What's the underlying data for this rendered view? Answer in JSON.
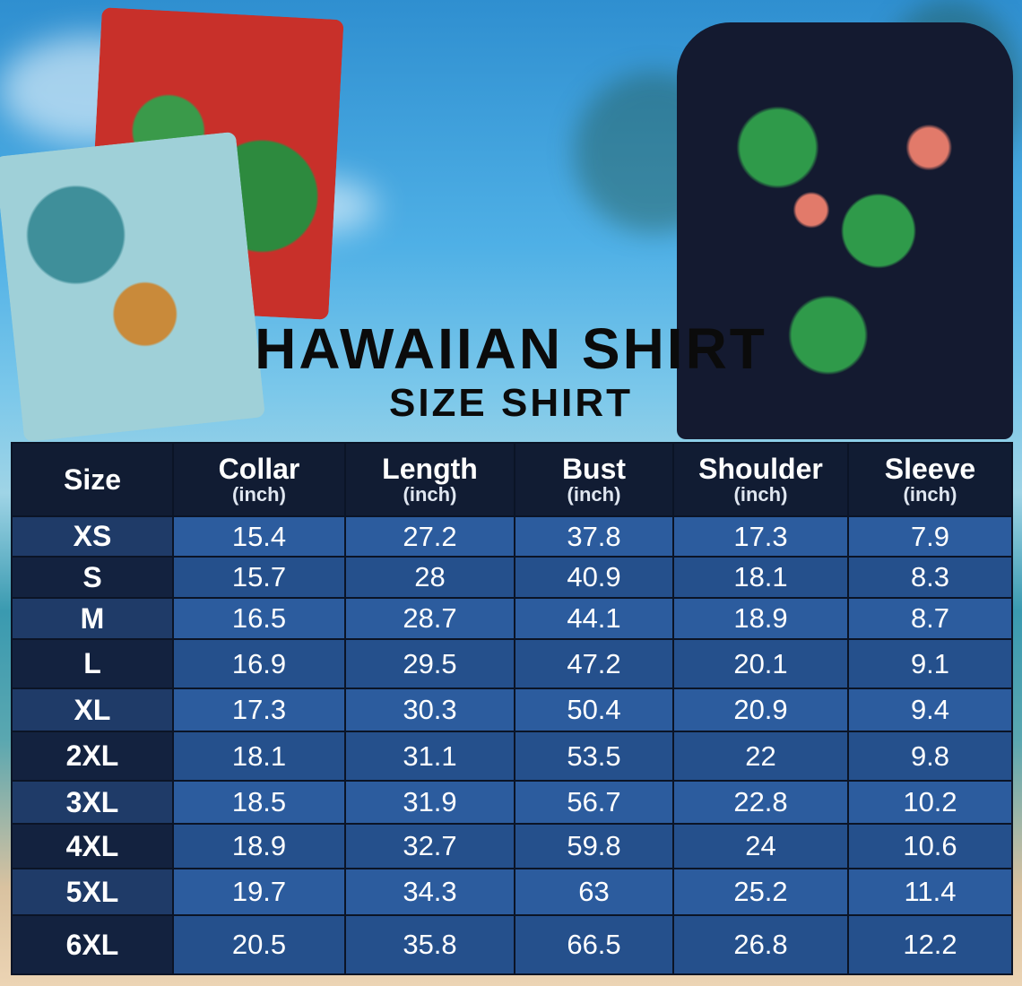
{
  "title": "HAWAIIAN SHIRT",
  "subtitle": "SIZE SHIRT",
  "table": {
    "columns": [
      {
        "label": "Size",
        "unit": ""
      },
      {
        "label": "Collar",
        "unit": "(inch)"
      },
      {
        "label": "Length",
        "unit": "(inch)"
      },
      {
        "label": "Bust",
        "unit": "(inch)"
      },
      {
        "label": "Shoulder",
        "unit": "(inch)"
      },
      {
        "label": "Sleeve",
        "unit": "(inch)"
      }
    ],
    "rows": [
      [
        "XS",
        "15.4",
        "27.2",
        "37.8",
        "17.3",
        "7.9"
      ],
      [
        "S",
        "15.7",
        "28",
        "40.9",
        "18.1",
        "8.3"
      ],
      [
        "M",
        "16.5",
        "28.7",
        "44.1",
        "18.9",
        "8.7"
      ],
      [
        "L",
        "16.9",
        "29.5",
        "47.2",
        "20.1",
        "9.1"
      ],
      [
        "XL",
        "17.3",
        "30.3",
        "50.4",
        "20.9",
        "9.4"
      ],
      [
        "2XL",
        "18.1",
        "31.1",
        "53.5",
        "22",
        "9.8"
      ],
      [
        "3XL",
        "18.5",
        "31.9",
        "56.7",
        "22.8",
        "10.2"
      ],
      [
        "4XL",
        "18.9",
        "32.7",
        "59.8",
        "24",
        "10.6"
      ],
      [
        "5XL",
        "19.7",
        "34.3",
        "63",
        "25.2",
        "11.4"
      ],
      [
        "6XL",
        "20.5",
        "35.8",
        "66.5",
        "26.8",
        "12.2"
      ]
    ]
  },
  "colors": {
    "header": "#111c33",
    "cell": "#2c5c9e",
    "size_cell": "#1f3b68"
  }
}
